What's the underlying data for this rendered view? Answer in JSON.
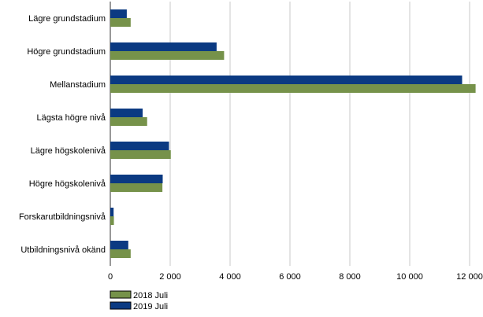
{
  "chart_data": {
    "type": "bar",
    "orientation": "horizontal",
    "categories": [
      "Lägre grundstadium",
      "Högre grundstadium",
      "Mellanstadium",
      "Lägsta högre nivå",
      "Lägre högskolenivå",
      "Högre högskolenivå",
      "Forskarutbildningsnivå",
      "Utbildningsnivå okänd"
    ],
    "series": [
      {
        "name": "2019 Juli",
        "color": "#0b3a82",
        "values": [
          550,
          3550,
          11750,
          1080,
          1960,
          1750,
          110,
          600
        ]
      },
      {
        "name": "2018 Juli",
        "color": "#76924a",
        "values": [
          680,
          3800,
          12200,
          1230,
          2020,
          1740,
          120,
          680
        ]
      }
    ],
    "x_ticks": [
      "0",
      "2 000",
      "4 000",
      "6 000",
      "8 000",
      "10 000",
      "12 000"
    ],
    "xlim": [
      0,
      12000
    ],
    "grid": "vertical",
    "legend": {
      "placement": "bottom-left",
      "entries": [
        {
          "label": "2018 Juli",
          "color": "#76924a"
        },
        {
          "label": "2019 Juli",
          "color": "#0b3a82"
        }
      ]
    }
  }
}
